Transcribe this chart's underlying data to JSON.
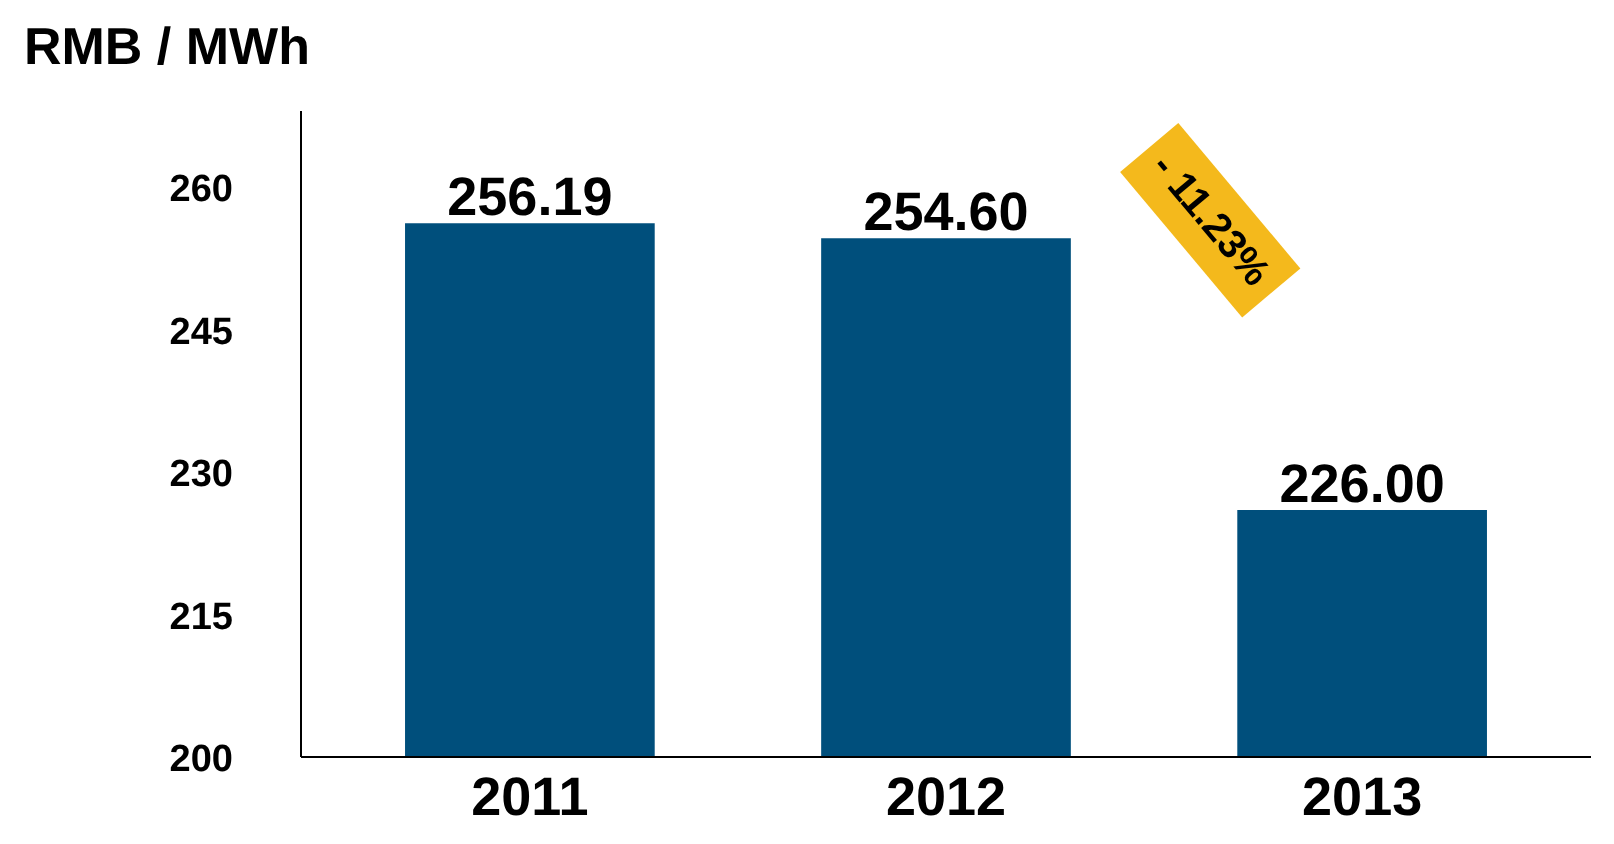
{
  "chart_data": {
    "type": "bar",
    "title": "RMB / MWh",
    "categories": [
      "2011",
      "2012",
      "2013"
    ],
    "values": [
      256.19,
      254.6,
      226.0
    ],
    "color": "#004f7c",
    "ylim": [
      200,
      268
    ],
    "yticks": [
      200,
      215,
      230,
      245,
      260
    ],
    "grid": false,
    "value_labels": [
      "256.19",
      "254.60",
      "226.00"
    ],
    "annotations": [
      "- 11.23%"
    ]
  }
}
